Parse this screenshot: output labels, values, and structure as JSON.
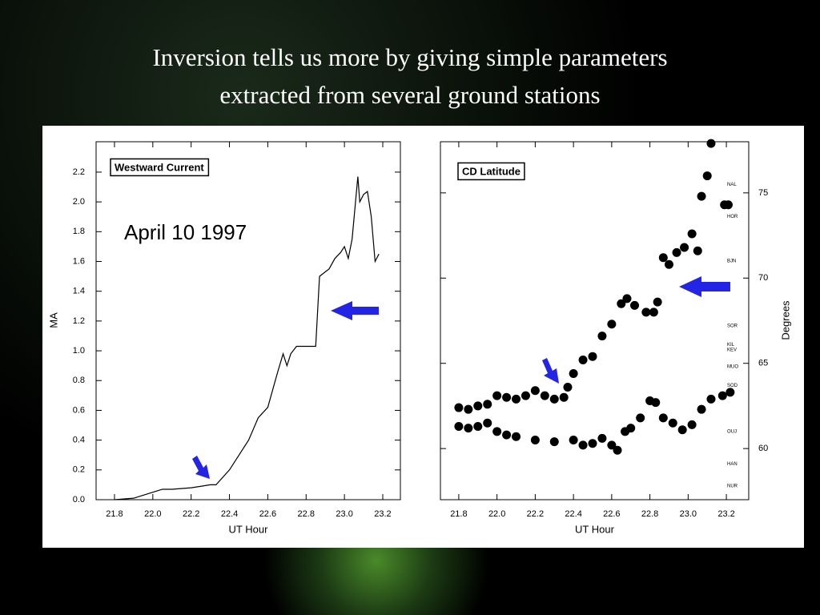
{
  "slide": {
    "title_lines": [
      "Inversion tells us more by giving simple parameters",
      "extracted from several ground stations"
    ]
  },
  "chart_data": [
    {
      "type": "line",
      "title": "Westward Current",
      "annotation": "April 10 1997",
      "xlabel": "UT Hour",
      "ylabel": "MA",
      "color": "#000000",
      "x": [
        21.8,
        21.9,
        22.0,
        22.05,
        22.1,
        22.2,
        22.3,
        22.33,
        22.4,
        22.45,
        22.5,
        22.55,
        22.6,
        22.65,
        22.68,
        22.7,
        22.72,
        22.75,
        22.8,
        22.85,
        22.87,
        22.9,
        22.92,
        22.95,
        22.98,
        23.0,
        23.02,
        23.04,
        23.07,
        23.08,
        23.1,
        23.12,
        23.14,
        23.16,
        23.18
      ],
      "values": [
        0.0,
        0.01,
        0.05,
        0.07,
        0.07,
        0.08,
        0.1,
        0.1,
        0.2,
        0.3,
        0.4,
        0.55,
        0.62,
        0.85,
        0.98,
        0.9,
        0.98,
        1.03,
        1.03,
        1.03,
        1.5,
        1.53,
        1.55,
        1.62,
        1.66,
        1.7,
        1.62,
        1.75,
        2.17,
        2.0,
        2.05,
        2.07,
        1.9,
        1.6,
        1.65
      ],
      "xlim": [
        21.704,
        23.292
      ],
      "ylim": [
        0,
        2.404
      ],
      "xticks": [
        21.8,
        {
          "value": 22.0,
          "label": "22.0"
        },
        22.2,
        22.4,
        22.6,
        22.8,
        {
          "value": 23.0,
          "label": "23.0"
        },
        23.2
      ],
      "yticks": [
        {
          "value": 0.0,
          "label": "0.0"
        },
        {
          "value": 0.2,
          "label": "0.2"
        },
        {
          "value": 0.4,
          "label": "0.4"
        },
        {
          "value": 0.6,
          "label": "0.6"
        },
        {
          "value": 0.8,
          "label": "0.8"
        },
        {
          "value": 1.0,
          "label": "1.0"
        },
        {
          "value": 1.2,
          "label": "1.2"
        },
        {
          "value": 1.4,
          "label": "1.4"
        },
        {
          "value": 1.6,
          "label": "1.6"
        },
        {
          "value": 1.8,
          "label": "1.8"
        },
        {
          "value": 2.0,
          "label": "2.0"
        },
        {
          "value": 2.2,
          "label": "2.2"
        }
      ]
    },
    {
      "type": "scatter",
      "title": "CD Latitude",
      "xlabel": "UT Hour",
      "ylabel": "Degrees",
      "y_axis_side": "right",
      "series": [
        {
          "color": "#000000",
          "x": [
            21.8,
            21.85,
            21.9,
            21.95,
            22.0,
            22.05,
            22.1,
            22.15,
            22.2,
            22.25,
            22.3,
            22.35,
            22.37,
            22.4,
            22.45,
            22.5,
            22.55,
            22.6,
            22.65,
            22.68,
            22.72,
            22.78,
            22.82,
            22.84,
            22.87,
            22.9,
            22.94,
            22.98,
            23.02,
            23.05,
            23.07,
            23.1,
            23.12,
            23.19,
            23.21
          ],
          "values": [
            62.4,
            62.3,
            62.5,
            62.6,
            63.1,
            63.0,
            62.9,
            63.1,
            63.4,
            63.1,
            62.9,
            63.0,
            63.6,
            64.4,
            65.2,
            65.4,
            66.6,
            67.3,
            68.5,
            68.8,
            68.4,
            68.0,
            68.0,
            68.6,
            71.2,
            70.8,
            71.5,
            71.8,
            72.6,
            71.6,
            74.8,
            76.0,
            77.9,
            74.3,
            74.3
          ]
        },
        {
          "color": "#000000",
          "x": [
            21.8,
            21.85,
            21.9,
            21.95,
            22.0,
            22.05,
            22.1,
            22.2,
            22.3,
            22.4,
            22.45,
            22.5,
            22.55,
            22.6,
            22.63,
            22.67,
            22.7,
            22.75,
            22.8,
            22.83,
            22.87,
            22.92,
            22.97,
            23.02,
            23.07,
            23.12,
            23.18,
            23.22
          ],
          "values": [
            61.3,
            61.2,
            61.3,
            61.5,
            61.0,
            60.8,
            60.7,
            60.5,
            60.4,
            60.5,
            60.2,
            60.3,
            60.6,
            60.2,
            59.9,
            61.0,
            61.2,
            61.8,
            62.8,
            62.7,
            61.8,
            61.5,
            61.1,
            61.4,
            62.3,
            62.9,
            63.1,
            63.3
          ]
        }
      ],
      "station_ticks": [
        {
          "value": 75.5,
          "label": "NAL"
        },
        {
          "value": 73.6,
          "label": "HOR"
        },
        {
          "value": 71.0,
          "label": "BJN"
        },
        {
          "value": 67.2,
          "label": "SOR"
        },
        {
          "value": 66.1,
          "label": "KIL"
        },
        {
          "value": 65.8,
          "label": "KEV"
        },
        {
          "value": 64.8,
          "label": "MUO"
        },
        {
          "value": 63.7,
          "label": "SOD"
        },
        {
          "value": 61.0,
          "label": "OUJ"
        },
        {
          "value": 59.1,
          "label": "HAN"
        },
        {
          "value": 57.8,
          "label": "NUR"
        }
      ],
      "xlim": [
        21.704,
        23.317
      ],
      "ylim": [
        57,
        78
      ],
      "xticks": [
        21.8,
        {
          "value": 22.0,
          "label": "22.0"
        },
        22.2,
        22.4,
        22.6,
        22.8,
        {
          "value": 23.0,
          "label": "23.0"
        },
        23.2
      ],
      "yticks": [
        60,
        65,
        70,
        75
      ]
    }
  ]
}
